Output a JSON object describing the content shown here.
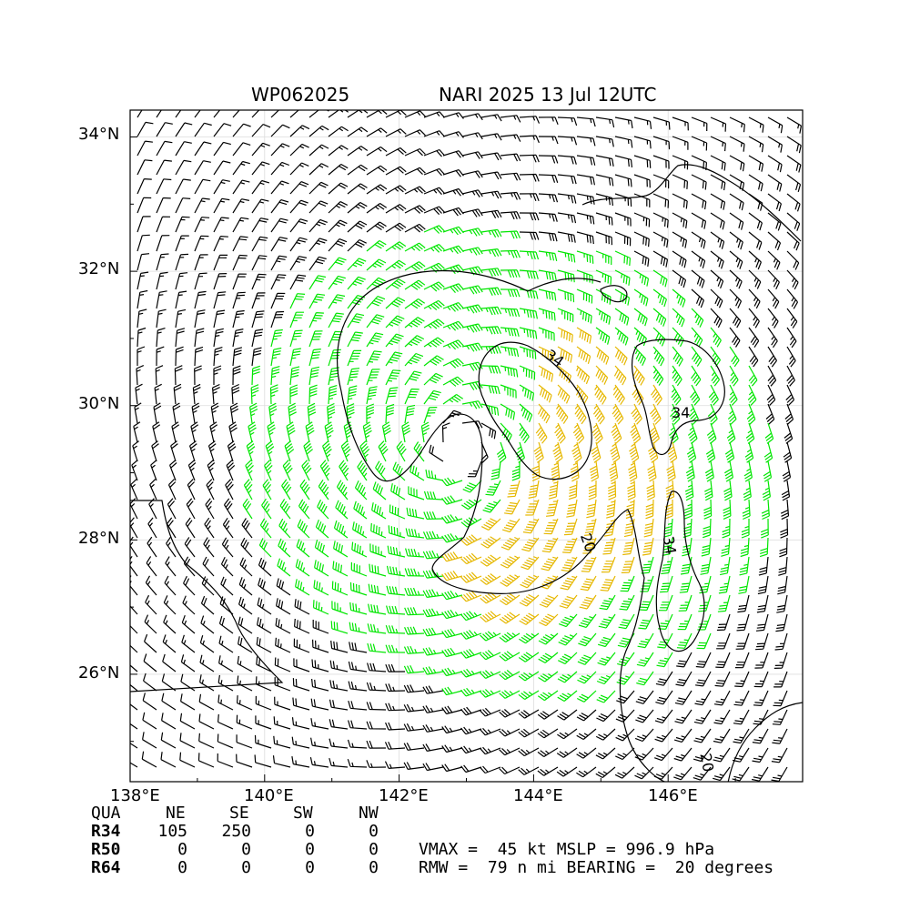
{
  "title": {
    "left": "WP062025",
    "right": "NARI 2025 13 Jul 12UTC"
  },
  "axes": {
    "lat_labels": [
      "34°N",
      "32°N",
      "30°N",
      "28°N",
      "26°N"
    ],
    "lon_labels": [
      "138°E",
      "140°E",
      "142°E",
      "144°E",
      "146°E"
    ],
    "lon_range": [
      138,
      148
    ],
    "lat_range": [
      24.4,
      34.4
    ]
  },
  "contours": {
    "labels": [
      "34",
      "34",
      "34",
      "20",
      "20"
    ]
  },
  "colors": {
    "barb_low": "#000000",
    "barb_34": "#00e600",
    "barb_50": "#e6b800",
    "contour": "#000000"
  },
  "storm": {
    "center_lon": 142.9,
    "center_lat": 29.4
  },
  "radii_table": {
    "header": [
      "QUA",
      "NE",
      "SE",
      "SW",
      "NW"
    ],
    "rows": [
      {
        "label": "R34",
        "values": [
          "105",
          "250",
          "0",
          "0"
        ]
      },
      {
        "label": "R50",
        "values": [
          "0",
          "0",
          "0",
          "0"
        ]
      },
      {
        "label": "R64",
        "values": [
          "0",
          "0",
          "0",
          "0"
        ]
      }
    ]
  },
  "stats": {
    "line1": "VMAX =  45 kt MSLP = 996.9 hPa",
    "line2": "RMW =  79 n mi BEARING =  20 degrees"
  }
}
